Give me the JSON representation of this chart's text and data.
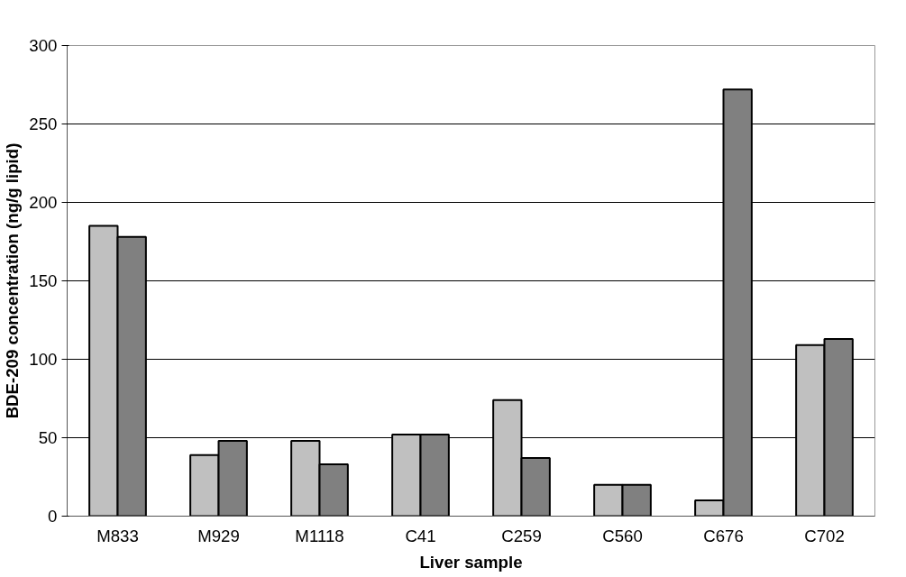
{
  "chart_data": {
    "type": "bar",
    "xlabel": "Liver sample",
    "ylabel": "BDE-209 concentration (ng/g lipid)",
    "categories": [
      "M833",
      "M929",
      "M1118",
      "C41",
      "C259",
      "C560",
      "C676",
      "C702"
    ],
    "series": [
      {
        "color": "#c0c0c0",
        "values": [
          185,
          39,
          48,
          52,
          74,
          20,
          10,
          109
        ]
      },
      {
        "color": "#808080",
        "values": [
          178,
          48,
          33,
          52,
          37,
          20,
          272,
          113
        ]
      }
    ],
    "ylim": [
      0,
      300
    ],
    "yticks": [
      0,
      50,
      100,
      150,
      200,
      250,
      300
    ],
    "grid": "y"
  }
}
